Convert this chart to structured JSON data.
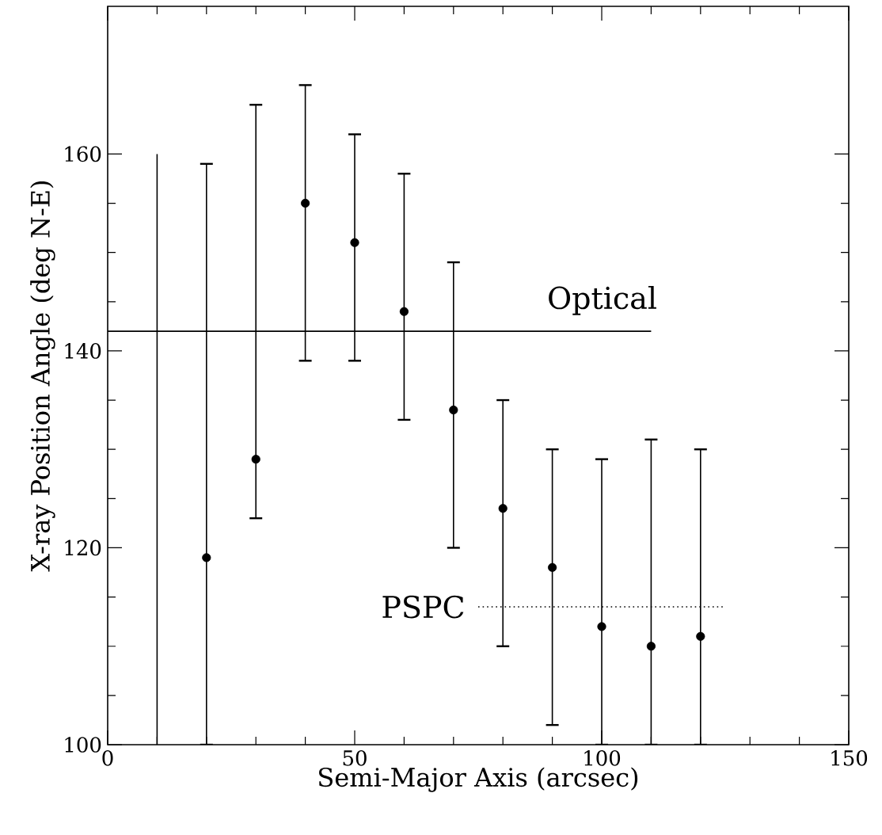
{
  "chart_data": {
    "type": "scatter",
    "xlabel": "Semi-Major Axis (arcsec)",
    "ylabel": "X-ray Position Angle (deg N-E)",
    "xlim": [
      0,
      150
    ],
    "ylim": [
      100,
      175
    ],
    "xticks": [
      0,
      50,
      100,
      150
    ],
    "yticks": [
      100,
      120,
      140,
      160
    ],
    "grid": false,
    "series": [
      {
        "color": "#000000",
        "marker": "circle",
        "x": [
          20,
          30,
          40,
          50,
          60,
          70,
          80,
          90,
          100,
          110,
          120
        ],
        "values": [
          119,
          129,
          155,
          151,
          144,
          134,
          124,
          118,
          112,
          110,
          111
        ],
        "errors": [
          [
            100,
            159
          ],
          [
            123,
            165
          ],
          [
            139,
            167
          ],
          [
            139,
            162
          ],
          [
            133,
            158
          ],
          [
            120,
            149
          ],
          [
            110,
            135
          ],
          [
            102,
            130
          ],
          [
            100,
            129
          ],
          [
            100,
            131
          ],
          [
            100,
            130
          ]
        ]
      },
      {
        "type": "bar",
        "color": "#000000",
        "x": [
          10
        ],
        "base": [
          100
        ],
        "values": [
          60
        ]
      },
      {
        "type": "line",
        "name": "Optical",
        "color": "#000000",
        "line_style": "solid",
        "marker": "none",
        "x": [
          0,
          110
        ],
        "values": [
          142,
          142
        ]
      },
      {
        "type": "line",
        "name": "PSPC",
        "color": "#000000",
        "line_style": "dotted",
        "marker": "none",
        "x": [
          75,
          125
        ],
        "values": [
          114,
          114
        ]
      }
    ]
  }
}
